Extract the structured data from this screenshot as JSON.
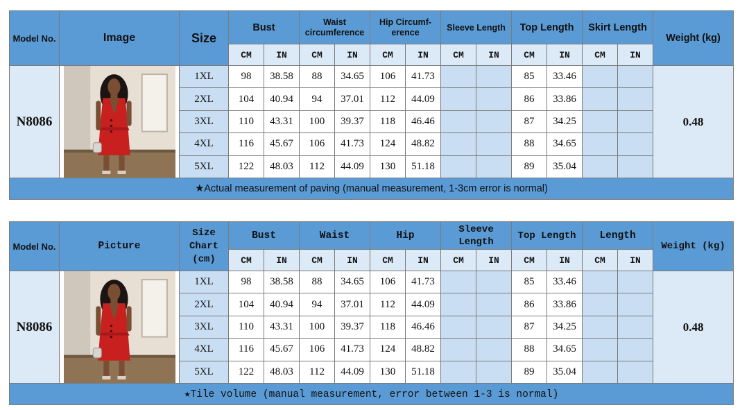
{
  "table1": {
    "model_header": "Model No.",
    "image_header": "Image",
    "size_header": "Size",
    "bust_header": "Bust",
    "waist_header_line1": "Waist",
    "waist_header_line2": "circumference",
    "hip_header_line1": "Hip Circumf-",
    "hip_header_line2": "erence",
    "sleeve_header": "Sleeve Length",
    "top_header": "Top Length",
    "skirt_header": "Skirt Length",
    "weight_header": "Weight (kg)",
    "unit_cm": "CM",
    "unit_in": "IN",
    "model": "N8086",
    "weight": "0.48",
    "note": "★Actual measurement of paving (manual measurement, 1-3cm error is normal)"
  },
  "table2": {
    "model_header": "Model No.",
    "image_header": "Picture",
    "size_header_line1": "Size",
    "size_header_line2": "Chart",
    "size_header_line3": "(cm)",
    "bust_header": "Bust",
    "waist_header": "Waist",
    "hip_header": "Hip",
    "sleeve_header_line1": "Sleeve",
    "sleeve_header_line2": "Length",
    "top_header": "Top Length",
    "length_header": "Length",
    "weight_header": "Weight (kg)",
    "unit_cm": "CM",
    "unit_in": "IN",
    "model": "N8086",
    "weight": "0.48",
    "note": "★Tile volume (manual measurement, error between 1-3 is normal)"
  },
  "rows": [
    {
      "size": "1XL",
      "bust_cm": "98",
      "bust_in": "38.58",
      "waist_cm": "88",
      "waist_in": "34.65",
      "hip_cm": "106",
      "hip_in": "41.73",
      "top_cm": "85",
      "top_in": "33.46"
    },
    {
      "size": "2XL",
      "bust_cm": "104",
      "bust_in": "40.94",
      "waist_cm": "94",
      "waist_in": "37.01",
      "hip_cm": "112",
      "hip_in": "44.09",
      "top_cm": "86",
      "top_in": "33.86"
    },
    {
      "size": "3XL",
      "bust_cm": "110",
      "bust_in": "43.31",
      "waist_cm": "100",
      "waist_in": "39.37",
      "hip_cm": "118",
      "hip_in": "46.46",
      "top_cm": "87",
      "top_in": "34.25"
    },
    {
      "size": "4XL",
      "bust_cm": "116",
      "bust_in": "45.67",
      "waist_cm": "106",
      "waist_in": "41.73",
      "hip_cm": "124",
      "hip_in": "48.82",
      "top_cm": "88",
      "top_in": "34.65"
    },
    {
      "size": "5XL",
      "bust_cm": "122",
      "bust_in": "48.03",
      "waist_cm": "112",
      "waist_in": "44.09",
      "hip_cm": "130",
      "hip_in": "51.18",
      "top_cm": "89",
      "top_in": "35.04"
    }
  ],
  "colors": {
    "header_blue": "#5b9bd5",
    "light_blue": "#c9def2",
    "pale_blue": "#dce9f6",
    "dress_red": "#c8201f"
  }
}
